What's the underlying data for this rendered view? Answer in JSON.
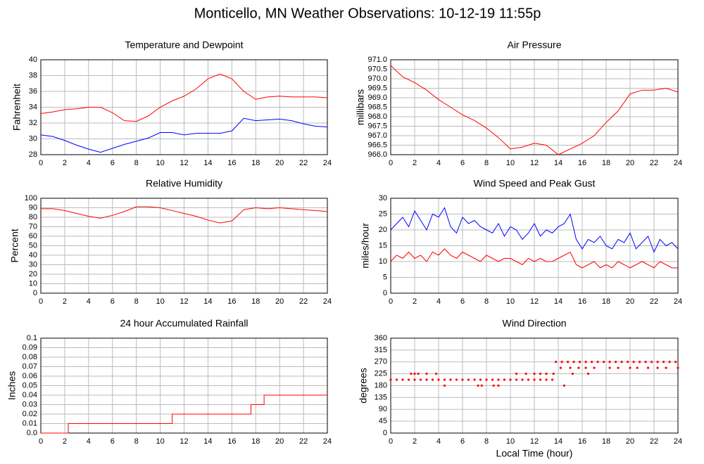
{
  "title": "Monticello, MN Weather Observations: 10-12-19 11:55p",
  "chart_data": [
    {
      "type": "line",
      "title": "Temperature and Dewpoint",
      "ylabel": "Fahrenheit",
      "x": [
        0,
        1,
        2,
        3,
        4,
        5,
        6,
        7,
        8,
        9,
        10,
        11,
        12,
        13,
        14,
        15,
        16,
        17,
        18,
        19,
        20,
        21,
        22,
        23,
        24
      ],
      "series": [
        {
          "color": "#ff0000",
          "values": [
            33.2,
            33.4,
            33.7,
            33.8,
            34.0,
            34.0,
            33.3,
            32.3,
            32.2,
            32.9,
            34.0,
            34.8,
            35.4,
            36.3,
            37.6,
            38.2,
            37.6,
            36.0,
            35.0,
            35.3,
            35.4,
            35.3,
            35.3,
            35.3,
            35.2
          ]
        },
        {
          "color": "#0000ff",
          "values": [
            30.5,
            30.3,
            29.8,
            29.2,
            28.7,
            28.3,
            28.8,
            29.3,
            29.7,
            30.1,
            30.8,
            30.8,
            30.5,
            30.7,
            30.7,
            30.7,
            31.0,
            32.6,
            32.3,
            32.4,
            32.5,
            32.3,
            31.9,
            31.6,
            31.5
          ]
        }
      ],
      "xlim": [
        0,
        24
      ],
      "xticks": [
        0,
        2,
        4,
        6,
        8,
        10,
        12,
        14,
        16,
        18,
        20,
        22,
        24
      ],
      "ylim": [
        28,
        40
      ],
      "yticks": [
        28,
        30,
        32,
        34,
        36,
        38,
        40
      ],
      "grid": true
    },
    {
      "type": "line",
      "title": "Air Pressure",
      "ylabel": "millibars",
      "x": [
        0,
        1,
        2,
        3,
        4,
        5,
        6,
        7,
        8,
        9,
        10,
        11,
        12,
        13,
        14,
        15,
        16,
        17,
        18,
        19,
        20,
        21,
        22,
        23,
        24
      ],
      "series": [
        {
          "color": "#ff0000",
          "values": [
            970.7,
            970.1,
            969.8,
            969.4,
            968.9,
            968.5,
            968.1,
            967.8,
            967.4,
            966.9,
            966.3,
            966.4,
            966.6,
            966.5,
            966.0,
            966.3,
            966.6,
            967.0,
            967.7,
            968.3,
            969.2,
            969.4,
            969.4,
            969.5,
            969.3
          ]
        }
      ],
      "xlim": [
        0,
        24
      ],
      "xticks": [
        0,
        2,
        4,
        6,
        8,
        10,
        12,
        14,
        16,
        18,
        20,
        22,
        24
      ],
      "ylim": [
        966,
        971
      ],
      "yticks": [
        {
          "value": 966,
          "label": "966.0"
        },
        966.5,
        {
          "value": 967,
          "label": "967.0"
        },
        967.5,
        {
          "value": 968,
          "label": "968.0"
        },
        968.5,
        {
          "value": 969,
          "label": "969.0"
        },
        969.5,
        {
          "value": 970,
          "label": "970.0"
        },
        970.5,
        {
          "value": 971,
          "label": "971.0"
        }
      ],
      "grid": true
    },
    {
      "type": "line",
      "title": "Relative Humidity",
      "ylabel": "Percent",
      "x": [
        0,
        1,
        2,
        3,
        4,
        5,
        6,
        7,
        8,
        9,
        10,
        11,
        12,
        13,
        14,
        15,
        16,
        17,
        18,
        19,
        20,
        21,
        22,
        23,
        24
      ],
      "series": [
        {
          "color": "#ff0000",
          "values": [
            89,
            89,
            87,
            84,
            81,
            79,
            82,
            86,
            91,
            91,
            90,
            87,
            84,
            81,
            77,
            74,
            76,
            88,
            90,
            89,
            90,
            89,
            88,
            87,
            86
          ]
        }
      ],
      "xlim": [
        0,
        24
      ],
      "xticks": [
        0,
        2,
        4,
        6,
        8,
        10,
        12,
        14,
        16,
        18,
        20,
        22,
        24
      ],
      "ylim": [
        0,
        100
      ],
      "yticks": [
        0,
        10,
        20,
        30,
        40,
        50,
        60,
        70,
        80,
        90,
        100
      ],
      "grid": true
    },
    {
      "type": "line",
      "title": "Wind Speed and Peak Gust",
      "ylabel": "miles/hour",
      "x": [
        0,
        0.5,
        1,
        1.5,
        2,
        2.5,
        3,
        3.5,
        4,
        4.5,
        5,
        5.5,
        6,
        6.5,
        7,
        7.5,
        8,
        8.5,
        9,
        9.5,
        10,
        10.5,
        11,
        11.5,
        12,
        12.5,
        13,
        13.5,
        14,
        14.5,
        15,
        15.5,
        16,
        16.5,
        17,
        17.5,
        18,
        18.5,
        19,
        19.5,
        20,
        20.5,
        21,
        21.5,
        22,
        22.5,
        23,
        23.5,
        24
      ],
      "series": [
        {
          "color": "#0000ff",
          "values": [
            20,
            22,
            24,
            21,
            26,
            23,
            20,
            25,
            24,
            27,
            21,
            19,
            24,
            22,
            23,
            21,
            20,
            19,
            22,
            18,
            21,
            20,
            17,
            19,
            22,
            18,
            20,
            19,
            21,
            22,
            25,
            17,
            14,
            17,
            16,
            18,
            15,
            14,
            17,
            16,
            19,
            14,
            16,
            18,
            13,
            17,
            15,
            16,
            14
          ]
        },
        {
          "color": "#ff0000",
          "values": [
            10,
            12,
            11,
            13,
            11,
            12,
            10,
            13,
            12,
            14,
            12,
            11,
            13,
            12,
            11,
            10,
            12,
            11,
            10,
            11,
            11,
            10,
            9,
            11,
            10,
            11,
            10,
            10,
            11,
            12,
            13,
            9,
            8,
            9,
            10,
            8,
            9,
            8,
            10,
            9,
            8,
            9,
            10,
            9,
            8,
            10,
            9,
            8,
            8
          ]
        }
      ],
      "xlim": [
        0,
        24
      ],
      "xticks": [
        0,
        2,
        4,
        6,
        8,
        10,
        12,
        14,
        16,
        18,
        20,
        22,
        24
      ],
      "ylim": [
        0,
        30
      ],
      "yticks": [
        0,
        5,
        10,
        15,
        20,
        25,
        30
      ],
      "grid": true
    },
    {
      "type": "line",
      "title": "24 hour Accumulated Rainfall",
      "ylabel": "Inches",
      "x": [
        0,
        2.3,
        2.3,
        11,
        11,
        17.6,
        17.6,
        18.7,
        18.7,
        24
      ],
      "series": [
        {
          "color": "#ff0000",
          "values": [
            0,
            0,
            0.01,
            0.01,
            0.02,
            0.02,
            0.03,
            0.03,
            0.04,
            0.04
          ]
        }
      ],
      "xlim": [
        0,
        24
      ],
      "xticks": [
        0,
        2,
        4,
        6,
        8,
        10,
        12,
        14,
        16,
        18,
        20,
        22,
        24
      ],
      "ylim": [
        0,
        0.1
      ],
      "yticks": [
        {
          "value": 0,
          "label": "0.0"
        },
        0.01,
        0.02,
        0.03,
        0.04,
        0.05,
        0.06,
        0.07,
        0.08,
        0.09,
        0.1
      ],
      "grid": true
    },
    {
      "type": "scatter",
      "title": "Wind Direction",
      "ylabel": "degrees",
      "xlabel": "Local Time (hour)",
      "x": [
        0,
        0.5,
        1,
        1.5,
        2,
        2.5,
        3,
        3.5,
        4,
        4.5,
        5,
        5.5,
        6,
        6.5,
        7,
        7.5,
        8,
        8.5,
        9,
        9.5,
        10,
        10.5,
        11,
        11.5,
        12,
        12.5,
        13,
        13.5,
        1.7,
        2.0,
        2.3,
        3.0,
        3.8,
        10.5,
        11.3,
        12.0,
        12.5,
        13.0,
        13.6,
        15.2,
        16.5,
        4.5,
        7.3,
        7.6,
        8.6,
        9.0,
        14.5,
        14.2,
        15.0,
        15.7,
        16.3,
        17.0,
        18.3,
        19.0,
        20.0,
        20.6,
        21.5,
        22.3,
        23.0,
        24.0,
        13.8,
        14.3,
        14.8,
        15.3,
        15.8,
        16.3,
        16.8,
        17.3,
        17.8,
        18.3,
        18.8,
        19.3,
        19.8,
        20.3,
        20.8,
        21.3,
        21.8,
        22.3,
        22.8,
        23.3,
        23.8
      ],
      "series": [
        {
          "color": "#ff0000",
          "values": [
            202.5,
            202.5,
            202.5,
            202.5,
            202.5,
            202.5,
            202.5,
            202.5,
            202.5,
            202.5,
            202.5,
            202.5,
            202.5,
            202.5,
            202.5,
            202.5,
            202.5,
            202.5,
            202.5,
            202.5,
            202.5,
            202.5,
            202.5,
            202.5,
            202.5,
            202.5,
            202.5,
            202.5,
            225,
            225,
            225,
            225,
            225,
            225,
            225,
            225,
            225,
            225,
            225,
            225,
            225,
            180,
            180,
            180,
            180,
            180,
            180,
            247.5,
            247.5,
            247.5,
            247.5,
            247.5,
            247.5,
            247.5,
            247.5,
            247.5,
            247.5,
            247.5,
            247.5,
            247.5,
            270,
            270,
            270,
            270,
            270,
            270,
            270,
            270,
            270,
            270,
            270,
            270,
            270,
            270,
            270,
            270,
            270,
            270,
            270,
            270,
            270
          ]
        }
      ],
      "xlim": [
        0,
        24
      ],
      "xticks": [
        0,
        2,
        4,
        6,
        8,
        10,
        12,
        14,
        16,
        18,
        20,
        22,
        24
      ],
      "ylim": [
        0,
        360
      ],
      "yticks": [
        0,
        45,
        90,
        135,
        180,
        225,
        270,
        315,
        360
      ],
      "grid": true
    }
  ]
}
